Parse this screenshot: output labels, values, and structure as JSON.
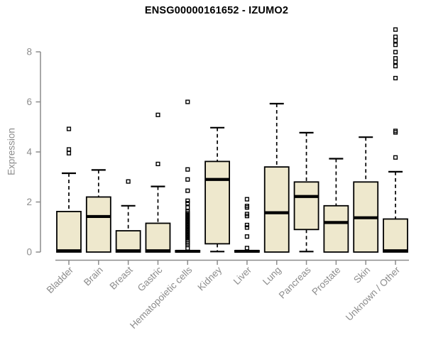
{
  "chart_data": {
    "type": "boxplot",
    "title": "ENSG00000161652 - IZUMO2",
    "ylabel": "Expression",
    "xlabel": "",
    "ylim": [
      0,
      9
    ],
    "yticks": [
      0,
      2,
      4,
      6,
      8
    ],
    "grid": false,
    "legend": false,
    "categories": [
      "Bladder",
      "Brain",
      "Breast",
      "Gastric",
      "Hematopoietic cells",
      "Kidney",
      "Liver",
      "Lung",
      "Pancreas",
      "Prostate",
      "Skin",
      "Unknown / Other"
    ],
    "boxes": [
      {
        "category": "Bladder",
        "whisker_low": 0,
        "q1": 0,
        "median": 0.05,
        "q3": 1.62,
        "whisker_high": 3.15,
        "outliers": [
          3.95,
          4.1,
          4.92
        ]
      },
      {
        "category": "Brain",
        "whisker_low": 0,
        "q1": 0,
        "median": 1.42,
        "q3": 2.2,
        "whisker_high": 3.28,
        "outliers": []
      },
      {
        "category": "Breast",
        "whisker_low": 0,
        "q1": 0,
        "median": 0.05,
        "q3": 0.85,
        "whisker_high": 1.85,
        "outliers": [
          2.82
        ]
      },
      {
        "category": "Gastric",
        "whisker_low": 0,
        "q1": 0,
        "median": 0.05,
        "q3": 1.15,
        "whisker_high": 2.62,
        "outliers": [
          3.52,
          5.48
        ]
      },
      {
        "category": "Hematopoietic cells",
        "whisker_low": 0,
        "q1": 0,
        "median": 0.03,
        "q3": 0.06,
        "whisker_high": 0.06,
        "outliers": [
          0.15,
          0.28,
          0.35,
          0.42,
          0.48,
          0.55,
          0.6,
          0.65,
          0.7,
          0.75,
          0.8,
          0.85,
          0.9,
          0.95,
          1.0,
          1.05,
          1.1,
          1.15,
          1.2,
          1.25,
          1.3,
          1.35,
          1.4,
          1.45,
          1.5,
          1.55,
          1.62,
          1.78,
          1.95,
          2.05,
          2.45,
          2.9,
          3.3,
          6.0
        ]
      },
      {
        "category": "Kidney",
        "whisker_low": 0.02,
        "q1": 0.33,
        "median": 2.9,
        "q3": 3.62,
        "whisker_high": 4.97,
        "outliers": []
      },
      {
        "category": "Liver",
        "whisker_low": 0,
        "q1": 0,
        "median": 0.03,
        "q3": 0.06,
        "whisker_high": 0.06,
        "outliers": [
          0.16,
          0.62,
          0.98,
          1.08,
          1.44,
          1.52,
          1.78,
          1.84,
          2.11
        ]
      },
      {
        "category": "Lung",
        "whisker_low": 0,
        "q1": 0,
        "median": 1.57,
        "q3": 3.4,
        "whisker_high": 5.93,
        "outliers": []
      },
      {
        "category": "Pancreas",
        "whisker_low": 0.02,
        "q1": 0.9,
        "median": 2.22,
        "q3": 2.8,
        "whisker_high": 4.77,
        "outliers": []
      },
      {
        "category": "Prostate",
        "whisker_low": 0,
        "q1": 0,
        "median": 1.18,
        "q3": 1.85,
        "whisker_high": 3.73,
        "outliers": []
      },
      {
        "category": "Skin",
        "whisker_low": 0,
        "q1": 0,
        "median": 1.37,
        "q3": 2.8,
        "whisker_high": 4.59,
        "outliers": []
      },
      {
        "category": "Unknown / Other",
        "whisker_low": 0,
        "q1": 0,
        "median": 0.05,
        "q3": 1.32,
        "whisker_high": 3.21,
        "outliers": [
          3.78,
          4.78,
          4.84,
          6.95,
          7.43,
          7.6,
          7.74,
          7.99,
          8.28,
          8.45,
          8.6,
          8.89
        ]
      }
    ],
    "colors": {
      "box_fill": "#EEE8CD",
      "box_stroke": "#000000",
      "median": "#000000",
      "whisker": "#000000",
      "outlier": "#000000",
      "axis": "#8c8c8c",
      "title": "#000000",
      "background": "#ffffff"
    }
  }
}
